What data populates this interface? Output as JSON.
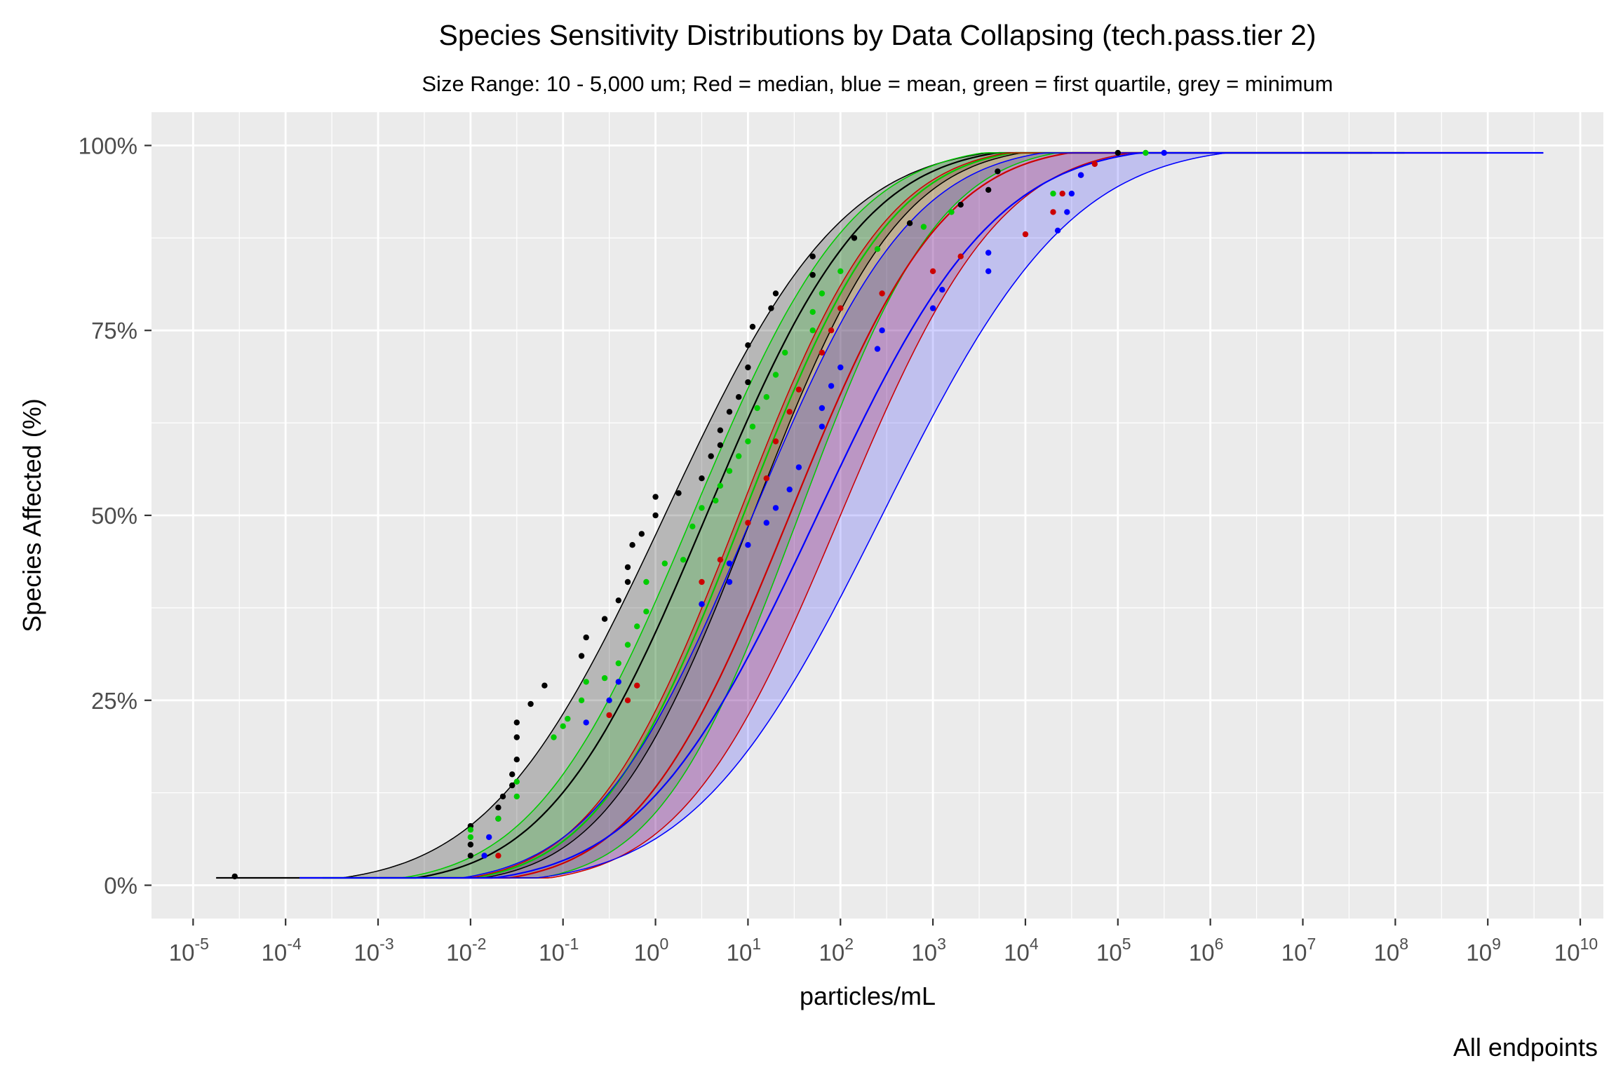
{
  "chart_data": {
    "type": "line",
    "title": "Species Sensitivity Distributions by Data Collapsing (tech.pass.tier 2)",
    "subtitle": "Size Range: 10 - 5,000 um; Red = median, blue = mean, green = first quartile, grey = minimum",
    "xlabel": "particles/mL",
    "ylabel": "Species Affected (%)",
    "caption": "All endpoints",
    "x_scale": "log10",
    "xlim_exponent": [
      -5.45,
      10.25
    ],
    "x_tick_base": "10",
    "x_tick_exponents": [
      "-5",
      "-4",
      "-3",
      "-2",
      "-1",
      "0",
      "1",
      "2",
      "3",
      "4",
      "5",
      "6",
      "7",
      "8",
      "9",
      "10"
    ],
    "ylim": [
      -0.045,
      1.045
    ],
    "y_ticks": [
      0,
      0.25,
      0.5,
      0.75,
      1.0
    ],
    "y_tick_labels": [
      "0%",
      "25%",
      "50%",
      "75%",
      "100%"
    ],
    "grid": true,
    "legend": "none",
    "colors": {
      "panel": "#ebebeb",
      "grid": "#ffffff",
      "median": "#ff0000",
      "mean": "#0000ff",
      "first_quartile": "#00cc00",
      "minimum": "#000000"
    },
    "series": [
      {
        "key": "minimum",
        "color": "#000000",
        "band_fill": "#000000",
        "band_opacity": 0.22,
        "center_log": 0.55,
        "lower_log": -0.45,
        "upper_log": 1.45,
        "fit_start_log": -4.75,
        "fit_end_log": 7.75,
        "lines": [
          {
            "mu": 0.55,
            "s": 1.35
          },
          {
            "mu": 1.05,
            "s": 1.25
          },
          {
            "mu": 0.1,
            "s": 1.5
          }
        ],
        "points": [
          [
            -4.55,
            0.012
          ],
          [
            -2.0,
            0.04
          ],
          [
            -2.0,
            0.055
          ],
          [
            -2.0,
            0.08
          ],
          [
            -1.7,
            0.09
          ],
          [
            -1.7,
            0.105
          ],
          [
            -1.65,
            0.12
          ],
          [
            -1.55,
            0.135
          ],
          [
            -1.55,
            0.15
          ],
          [
            -1.5,
            0.17
          ],
          [
            -1.5,
            0.2
          ],
          [
            -1.5,
            0.22
          ],
          [
            -1.35,
            0.245
          ],
          [
            -1.2,
            0.27
          ],
          [
            -0.8,
            0.31
          ],
          [
            -0.75,
            0.335
          ],
          [
            -0.55,
            0.36
          ],
          [
            -0.4,
            0.385
          ],
          [
            -0.3,
            0.41
          ],
          [
            -0.3,
            0.43
          ],
          [
            -0.25,
            0.46
          ],
          [
            -0.15,
            0.475
          ],
          [
            0.0,
            0.5
          ],
          [
            0.0,
            0.525
          ],
          [
            0.25,
            0.53
          ],
          [
            0.5,
            0.55
          ],
          [
            0.6,
            0.58
          ],
          [
            0.7,
            0.595
          ],
          [
            0.7,
            0.615
          ],
          [
            0.8,
            0.64
          ],
          [
            0.9,
            0.66
          ],
          [
            1.0,
            0.68
          ],
          [
            1.0,
            0.7
          ],
          [
            1.0,
            0.73
          ],
          [
            1.05,
            0.755
          ],
          [
            1.25,
            0.78
          ],
          [
            1.3,
            0.8
          ],
          [
            1.7,
            0.825
          ],
          [
            1.7,
            0.85
          ],
          [
            2.15,
            0.875
          ],
          [
            2.75,
            0.895
          ],
          [
            3.3,
            0.92
          ],
          [
            3.6,
            0.94
          ],
          [
            3.7,
            0.965
          ],
          [
            5.0,
            0.99
          ]
        ]
      },
      {
        "key": "first_quartile",
        "color": "#00cc00",
        "band_fill": "#00b400",
        "band_opacity": 0.2,
        "center_log": 0.95,
        "lower_log": 0.2,
        "upper_log": 1.55,
        "fit_start_log": -3.6,
        "fit_end_log": 8.1,
        "lines": [
          {
            "mu": 0.95,
            "s": 1.25
          },
          {
            "mu": 1.55,
            "s": 1.2
          },
          {
            "mu": 0.4,
            "s": 1.35
          }
        ],
        "points": [
          [
            -2.0,
            0.065
          ],
          [
            -2.0,
            0.075
          ],
          [
            -1.7,
            0.09
          ],
          [
            -1.5,
            0.12
          ],
          [
            -1.5,
            0.14
          ],
          [
            -1.1,
            0.2
          ],
          [
            -1.0,
            0.215
          ],
          [
            -0.95,
            0.225
          ],
          [
            -0.8,
            0.25
          ],
          [
            -0.75,
            0.275
          ],
          [
            -0.55,
            0.28
          ],
          [
            -0.4,
            0.3
          ],
          [
            -0.3,
            0.325
          ],
          [
            -0.2,
            0.35
          ],
          [
            -0.1,
            0.37
          ],
          [
            -0.1,
            0.41
          ],
          [
            0.1,
            0.435
          ],
          [
            0.3,
            0.44
          ],
          [
            0.4,
            0.485
          ],
          [
            0.5,
            0.51
          ],
          [
            0.65,
            0.52
          ],
          [
            0.7,
            0.54
          ],
          [
            0.8,
            0.56
          ],
          [
            0.9,
            0.58
          ],
          [
            1.0,
            0.6
          ],
          [
            1.05,
            0.62
          ],
          [
            1.1,
            0.645
          ],
          [
            1.2,
            0.66
          ],
          [
            1.3,
            0.69
          ],
          [
            1.4,
            0.72
          ],
          [
            1.7,
            0.75
          ],
          [
            1.7,
            0.775
          ],
          [
            1.8,
            0.8
          ],
          [
            2.0,
            0.83
          ],
          [
            2.4,
            0.86
          ],
          [
            2.9,
            0.89
          ],
          [
            3.2,
            0.91
          ],
          [
            4.3,
            0.935
          ],
          [
            5.3,
            0.99
          ]
        ]
      },
      {
        "key": "median",
        "color": "#cc0000",
        "band_fill": "#cc0000",
        "band_opacity": 0.22,
        "center_log": 1.45,
        "lower_log": 0.7,
        "upper_log": 2.05,
        "fit_start_log": -2.35,
        "fit_end_log": 9.0,
        "lines": [
          {
            "mu": 1.45,
            "s": 1.3
          },
          {
            "mu": 2.0,
            "s": 1.35
          },
          {
            "mu": 0.9,
            "s": 1.25
          }
        ],
        "points": [
          [
            -1.7,
            0.04
          ],
          [
            -0.5,
            0.23
          ],
          [
            -0.2,
            0.27
          ],
          [
            -0.3,
            0.25
          ],
          [
            0.5,
            0.38
          ],
          [
            0.5,
            0.41
          ],
          [
            0.7,
            0.44
          ],
          [
            1.0,
            0.49
          ],
          [
            1.2,
            0.55
          ],
          [
            1.3,
            0.6
          ],
          [
            1.45,
            0.64
          ],
          [
            1.55,
            0.67
          ],
          [
            1.8,
            0.72
          ],
          [
            1.9,
            0.75
          ],
          [
            2.0,
            0.78
          ],
          [
            2.45,
            0.8
          ],
          [
            3.0,
            0.83
          ],
          [
            3.3,
            0.85
          ],
          [
            4.0,
            0.88
          ],
          [
            4.3,
            0.91
          ],
          [
            4.4,
            0.935
          ],
          [
            4.6,
            0.96
          ],
          [
            4.75,
            0.975
          ]
        ]
      },
      {
        "key": "mean",
        "color": "#0000ff",
        "band_fill": "#0000ff",
        "band_opacity": 0.18,
        "center_log": 1.75,
        "lower_log": 1.05,
        "upper_log": 2.45,
        "fit_start_log": -3.85,
        "fit_end_log": 9.6,
        "lines": [
          {
            "mu": 1.75,
            "s": 1.5
          },
          {
            "mu": 2.45,
            "s": 1.6
          },
          {
            "mu": 1.05,
            "s": 1.35
          }
        ],
        "points": [
          [
            -1.85,
            0.04
          ],
          [
            -1.8,
            0.065
          ],
          [
            -0.75,
            0.22
          ],
          [
            -0.5,
            0.25
          ],
          [
            -0.4,
            0.275
          ],
          [
            0.5,
            0.38
          ],
          [
            0.8,
            0.41
          ],
          [
            0.8,
            0.435
          ],
          [
            1.0,
            0.46
          ],
          [
            1.2,
            0.49
          ],
          [
            1.3,
            0.51
          ],
          [
            1.45,
            0.535
          ],
          [
            1.55,
            0.565
          ],
          [
            1.8,
            0.62
          ],
          [
            1.8,
            0.645
          ],
          [
            1.9,
            0.675
          ],
          [
            2.0,
            0.7
          ],
          [
            2.4,
            0.725
          ],
          [
            2.45,
            0.75
          ],
          [
            3.0,
            0.78
          ],
          [
            3.1,
            0.805
          ],
          [
            3.6,
            0.83
          ],
          [
            3.6,
            0.855
          ],
          [
            4.35,
            0.885
          ],
          [
            4.45,
            0.91
          ],
          [
            4.5,
            0.935
          ],
          [
            4.6,
            0.96
          ],
          [
            5.5,
            0.99
          ]
        ]
      }
    ]
  }
}
